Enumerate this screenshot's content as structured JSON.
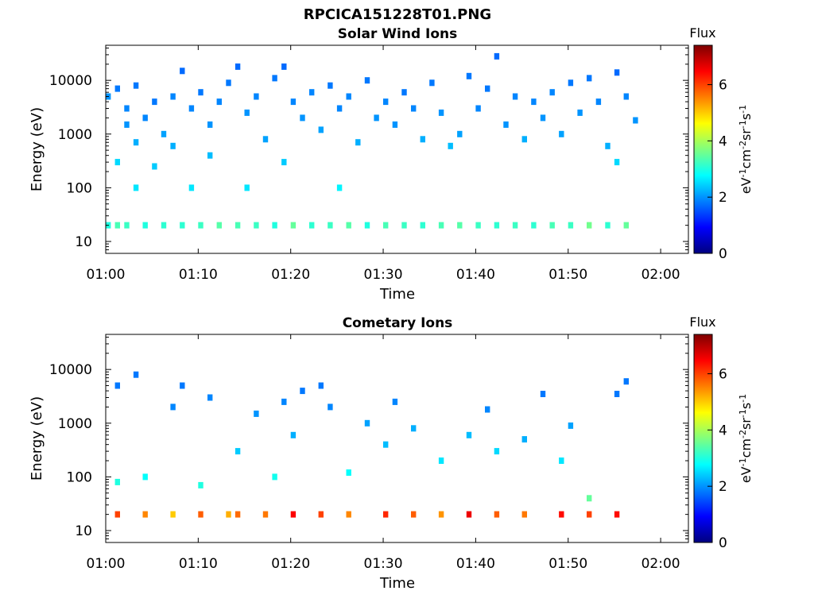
{
  "figure": {
    "title": "RPCICA151228T01.PNG"
  },
  "colorbar": {
    "label": "Flux",
    "unit_label": "eV-1cm-2sr-1s-1",
    "ticks": [
      "0",
      "2",
      "4",
      "6"
    ],
    "range": [
      0,
      7.4
    ],
    "colormap": [
      "#00007f",
      "#0000ff",
      "#007fff",
      "#00ffff",
      "#7fff7f",
      "#ffff00",
      "#ff7f00",
      "#ff0000",
      "#7f0000"
    ]
  },
  "chart_data": [
    {
      "type": "heatmap",
      "title": "Solar Wind Ions",
      "xlabel": "Time",
      "ylabel": "Energy (eV)",
      "xticks": [
        "01:00",
        "01:10",
        "01:20",
        "01:30",
        "01:40",
        "01:50",
        "02:00"
      ],
      "xlim": [
        "01:00",
        "02:03"
      ],
      "yticks": [
        "10",
        "100",
        "1000",
        "10000"
      ],
      "ylim": [
        6,
        45000
      ],
      "yscale": "log",
      "data_end": "01:57",
      "cells": [
        [
          "01:00",
          5000,
          2.0
        ],
        [
          "01:00",
          20,
          3.0
        ],
        [
          "01:01",
          7000,
          1.8
        ],
        [
          "01:01",
          300,
          2.5
        ],
        [
          "01:01",
          20,
          3.3
        ],
        [
          "01:02",
          3000,
          1.9
        ],
        [
          "01:02",
          1500,
          2.0
        ],
        [
          "01:02",
          20,
          3.2
        ],
        [
          "01:03",
          8000,
          1.8
        ],
        [
          "01:03",
          700,
          2.2
        ],
        [
          "01:03",
          100,
          2.6
        ],
        [
          "01:04",
          2000,
          1.9
        ],
        [
          "01:04",
          20,
          3.0
        ],
        [
          "01:05",
          4000,
          1.8
        ],
        [
          "01:05",
          250,
          2.4
        ],
        [
          "01:06",
          1000,
          2.1
        ],
        [
          "01:06",
          20,
          3.1
        ],
        [
          "01:07",
          5000,
          1.9
        ],
        [
          "01:07",
          600,
          2.2
        ],
        [
          "01:08",
          15000,
          1.7
        ],
        [
          "01:08",
          20,
          3.1
        ],
        [
          "01:09",
          3000,
          1.9
        ],
        [
          "01:09",
          100,
          2.6
        ],
        [
          "01:10",
          6000,
          1.8
        ],
        [
          "01:10",
          20,
          3.2
        ],
        [
          "01:11",
          1500,
          2.0
        ],
        [
          "01:11",
          400,
          2.3
        ],
        [
          "01:12",
          4000,
          1.9
        ],
        [
          "01:12",
          20,
          3.4
        ],
        [
          "01:13",
          9000,
          1.8
        ],
        [
          "01:14",
          18000,
          1.7
        ],
        [
          "01:14",
          20,
          3.3
        ],
        [
          "01:15",
          2500,
          2.0
        ],
        [
          "01:15",
          100,
          2.6
        ],
        [
          "01:16",
          5000,
          1.9
        ],
        [
          "01:16",
          20,
          3.2
        ],
        [
          "01:17",
          800,
          2.1
        ],
        [
          "01:18",
          11000,
          1.8
        ],
        [
          "01:18",
          20,
          3.0
        ],
        [
          "01:19",
          18000,
          1.7
        ],
        [
          "01:19",
          300,
          2.4
        ],
        [
          "01:20",
          4000,
          1.9
        ],
        [
          "01:20",
          20,
          3.5
        ],
        [
          "01:21",
          2000,
          2.0
        ],
        [
          "01:22",
          6000,
          1.9
        ],
        [
          "01:22",
          20,
          3.1
        ],
        [
          "01:23",
          1200,
          2.1
        ],
        [
          "01:24",
          8000,
          1.8
        ],
        [
          "01:24",
          20,
          3.2
        ],
        [
          "01:25",
          3000,
          1.9
        ],
        [
          "01:25",
          100,
          2.7
        ],
        [
          "01:26",
          5000,
          1.9
        ],
        [
          "01:26",
          20,
          3.4
        ],
        [
          "01:27",
          700,
          2.2
        ],
        [
          "01:28",
          10000,
          1.8
        ],
        [
          "01:28",
          20,
          3.0
        ],
        [
          "01:29",
          2000,
          2.0
        ],
        [
          "01:30",
          4000,
          1.9
        ],
        [
          "01:30",
          20,
          3.3
        ],
        [
          "01:31",
          1500,
          2.0
        ],
        [
          "01:32",
          6000,
          1.8
        ],
        [
          "01:32",
          20,
          3.2
        ],
        [
          "01:33",
          3000,
          1.9
        ],
        [
          "01:34",
          800,
          2.2
        ],
        [
          "01:34",
          20,
          3.1
        ],
        [
          "01:35",
          9000,
          1.8
        ],
        [
          "01:36",
          2500,
          2.0
        ],
        [
          "01:36",
          20,
          3.3
        ],
        [
          "01:37",
          600,
          2.3
        ],
        [
          "01:38",
          1000,
          2.1
        ],
        [
          "01:38",
          20,
          3.4
        ],
        [
          "01:39",
          12000,
          1.8
        ],
        [
          "01:40",
          3000,
          1.9
        ],
        [
          "01:40",
          20,
          3.2
        ],
        [
          "01:41",
          7000,
          1.8
        ],
        [
          "01:42",
          28000,
          1.7
        ],
        [
          "01:42",
          20,
          3.1
        ],
        [
          "01:43",
          1500,
          2.0
        ],
        [
          "01:44",
          5000,
          1.9
        ],
        [
          "01:44",
          20,
          3.2
        ],
        [
          "01:45",
          800,
          2.2
        ],
        [
          "01:46",
          4000,
          1.9
        ],
        [
          "01:46",
          20,
          3.1
        ],
        [
          "01:47",
          2000,
          2.0
        ],
        [
          "01:48",
          6000,
          1.9
        ],
        [
          "01:48",
          20,
          3.3
        ],
        [
          "01:49",
          1000,
          2.1
        ],
        [
          "01:50",
          9000,
          1.8
        ],
        [
          "01:50",
          20,
          3.2
        ],
        [
          "01:51",
          2500,
          2.0
        ],
        [
          "01:52",
          11000,
          1.8
        ],
        [
          "01:52",
          20,
          3.6
        ],
        [
          "01:53",
          4000,
          1.9
        ],
        [
          "01:54",
          600,
          2.2
        ],
        [
          "01:54",
          20,
          3.1
        ],
        [
          "01:55",
          14000,
          1.7
        ],
        [
          "01:55",
          300,
          2.5
        ],
        [
          "01:56",
          5000,
          1.9
        ],
        [
          "01:56",
          20,
          3.5
        ],
        [
          "01:57",
          1800,
          2.0
        ]
      ]
    },
    {
      "type": "heatmap",
      "title": "Cometary Ions",
      "xlabel": "Time",
      "ylabel": "Energy (eV)",
      "xticks": [
        "01:00",
        "01:10",
        "01:20",
        "01:30",
        "01:40",
        "01:50",
        "02:00"
      ],
      "xlim": [
        "01:00",
        "02:03"
      ],
      "yticks": [
        "10",
        "100",
        "1000",
        "10000"
      ],
      "ylim": [
        6,
        45000
      ],
      "yscale": "log",
      "data_end": "01:57",
      "cells": [
        [
          "01:01",
          20,
          6.0
        ],
        [
          "01:01",
          80,
          3.0
        ],
        [
          "01:01",
          5000,
          1.8
        ],
        [
          "01:03",
          8000,
          1.8
        ],
        [
          "01:04",
          20,
          5.5
        ],
        [
          "01:04",
          100,
          2.8
        ],
        [
          "01:07",
          20,
          5.0
        ],
        [
          "01:07",
          2000,
          1.9
        ],
        [
          "01:08",
          5000,
          1.8
        ],
        [
          "01:10",
          20,
          5.8
        ],
        [
          "01:10",
          70,
          3.0
        ],
        [
          "01:11",
          3000,
          1.9
        ],
        [
          "01:13",
          20,
          5.2
        ],
        [
          "01:14",
          300,
          2.4
        ],
        [
          "01:14",
          20,
          5.7
        ],
        [
          "01:16",
          1500,
          2.0
        ],
        [
          "01:17",
          20,
          5.6
        ],
        [
          "01:18",
          100,
          2.9
        ],
        [
          "01:19",
          2500,
          1.9
        ],
        [
          "01:20",
          20,
          6.5
        ],
        [
          "01:20",
          600,
          2.2
        ],
        [
          "01:21",
          4000,
          1.8
        ],
        [
          "01:23",
          20,
          6.0
        ],
        [
          "01:23",
          5000,
          1.8
        ],
        [
          "01:24",
          2000,
          1.9
        ],
        [
          "01:26",
          20,
          5.5
        ],
        [
          "01:26",
          120,
          2.8
        ],
        [
          "01:28",
          1000,
          2.1
        ],
        [
          "01:30",
          20,
          6.2
        ],
        [
          "01:30",
          400,
          2.3
        ],
        [
          "01:31",
          2500,
          1.9
        ],
        [
          "01:33",
          20,
          5.8
        ],
        [
          "01:33",
          800,
          2.2
        ],
        [
          "01:36",
          20,
          5.4
        ],
        [
          "01:36",
          200,
          2.6
        ],
        [
          "01:39",
          20,
          6.6
        ],
        [
          "01:39",
          600,
          2.3
        ],
        [
          "01:41",
          1800,
          1.9
        ],
        [
          "01:42",
          20,
          5.8
        ],
        [
          "01:42",
          300,
          2.5
        ],
        [
          "01:45",
          20,
          5.6
        ],
        [
          "01:45",
          500,
          2.2
        ],
        [
          "01:47",
          3500,
          1.8
        ],
        [
          "01:49",
          20,
          6.4
        ],
        [
          "01:49",
          200,
          2.6
        ],
        [
          "01:50",
          900,
          2.1
        ],
        [
          "01:52",
          20,
          6.0
        ],
        [
          "01:52",
          40,
          3.5
        ],
        [
          "01:55",
          20,
          6.4
        ],
        [
          "01:55",
          3500,
          1.8
        ],
        [
          "01:56",
          6000,
          1.8
        ]
      ]
    }
  ]
}
